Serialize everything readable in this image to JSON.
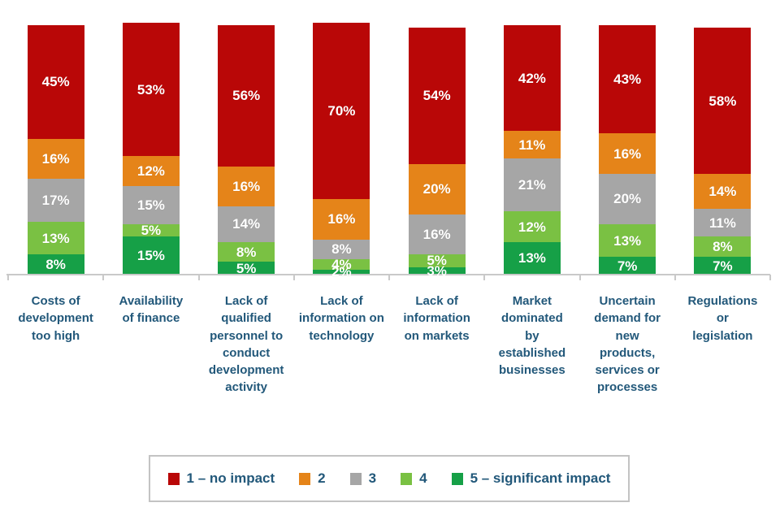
{
  "chart_data": {
    "type": "bar",
    "stacked": true,
    "orientation": "vertical",
    "title": "",
    "xlabel": "",
    "ylabel": "",
    "ylim": [
      0,
      100
    ],
    "grid": false,
    "value_suffix": "%",
    "legend_position": "bottom",
    "categories": [
      "Costs of\ndevelopment\ntoo high",
      "Availability\nof finance",
      "Lack of qualified\npersonnel to\nconduct\ndevelopment\nactivity",
      "Lack of\ninformation on\ntechnology",
      "Lack of\ninformation\non markets",
      "Market\ndominated\nby\nestablished\nbusinesses",
      "Uncertain\ndemand for\nnew\nproducts,\nservices or\nprocesses",
      "Regulations\nor\nlegislation"
    ],
    "series": [
      {
        "name": "1 – no impact",
        "color": "#b90707",
        "values": [
          45,
          53,
          56,
          70,
          54,
          42,
          43,
          58
        ]
      },
      {
        "name": "2",
        "color": "#e58419",
        "values": [
          16,
          12,
          16,
          16,
          20,
          11,
          16,
          14
        ]
      },
      {
        "name": "3",
        "color": "#a6a6a6",
        "values": [
          17,
          15,
          14,
          8,
          16,
          21,
          20,
          11
        ]
      },
      {
        "name": "4",
        "color": "#7ac143",
        "values": [
          13,
          5,
          8,
          4,
          5,
          12,
          13,
          8
        ]
      },
      {
        "name": "5 – significant impact",
        "color": "#16a047",
        "values": [
          8,
          15,
          5,
          2,
          3,
          13,
          7,
          7
        ]
      }
    ]
  },
  "colors": {
    "background": "#ffffff",
    "value_text": "#ffffff",
    "category_text": "#22587a",
    "axis_line": "#c9c9c9",
    "legend_border": "#c3c3c3"
  },
  "layout_values": {
    "bar_labels_shown": true
  }
}
